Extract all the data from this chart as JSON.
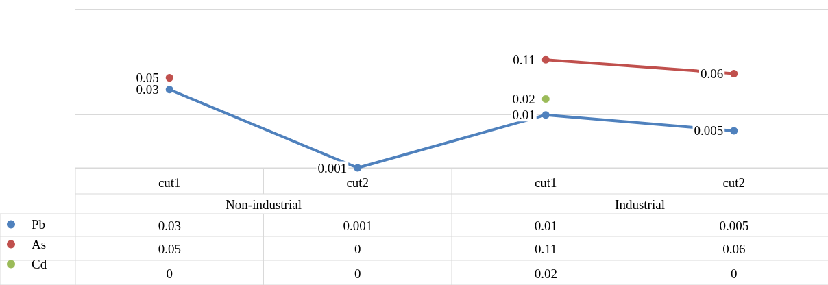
{
  "chart_data": {
    "type": "line",
    "categories": [
      "cut1",
      "cut2",
      "cut1",
      "cut2"
    ],
    "annotations": [
      "Non-industrial",
      "Industrial"
    ],
    "series": [
      {
        "name": "Pb",
        "color": "#4f81bd",
        "values": [
          0.03,
          0.001,
          0.01,
          0.005
        ],
        "value_labels": [
          "0.03",
          "0.001",
          "0.01",
          "0.005"
        ]
      },
      {
        "name": "As",
        "color": "#c0504d",
        "values": [
          0.05,
          null,
          0.11,
          0.06
        ],
        "value_labels": [
          "0.05",
          "0",
          "0.11",
          "0.06"
        ]
      },
      {
        "name": "Cd",
        "color": "#9bbb59",
        "values": [
          null,
          null,
          0.02,
          null
        ],
        "value_labels": [
          "0",
          "0",
          "0.02",
          "0"
        ]
      }
    ],
    "log": true,
    "ylim": [
      0.001,
      1
    ],
    "yticks": [
      {
        "value": 0.001,
        "label": null
      },
      {
        "value": 0.01,
        "label": null
      },
      {
        "value": 0.1,
        "label": null
      },
      {
        "value": 1,
        "label": null
      }
    ],
    "grid": "y",
    "tick_labels": "x",
    "legend": "bottom left",
    "marker": "circle",
    "line_style": "solid"
  }
}
